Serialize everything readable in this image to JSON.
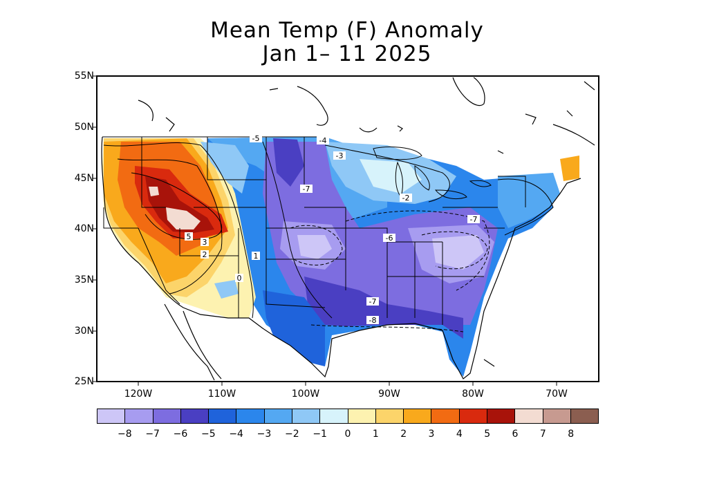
{
  "title": {
    "line1": "Mean Temp (F) Anomaly",
    "line2": "Jan 1– 11 2025"
  },
  "lat_labels": [
    "55N",
    "50N",
    "45N",
    "40N",
    "35N",
    "30N",
    "25N"
  ],
  "lon_labels": [
    "120W",
    "110W",
    "100W",
    "90W",
    "80W",
    "70W"
  ],
  "colorbar": {
    "colors": [
      "#cdc6f7",
      "#a79cf0",
      "#7d6de0",
      "#4a3fc2",
      "#1f63db",
      "#2b86ec",
      "#54a8f2",
      "#8fc8f6",
      "#d7f3fb",
      "#fdf2b0",
      "#fcd46a",
      "#f9a91c",
      "#f26b12",
      "#d92a0e",
      "#a8130a",
      "#f3dcd2",
      "#c79a90",
      "#8b5e50"
    ],
    "tick_labels": [
      "-8",
      "-7",
      "-6",
      "-5",
      "-4",
      "-3",
      "-2",
      "-1",
      "0",
      "1",
      "2",
      "3",
      "4",
      "5",
      "6",
      "7",
      "8"
    ]
  },
  "contour_labels": [
    "-5",
    "-4",
    "-3",
    "-7",
    "-2",
    "-6",
    "-7",
    "-7",
    "-8",
    "5",
    "3",
    "2",
    "1",
    "0"
  ]
}
